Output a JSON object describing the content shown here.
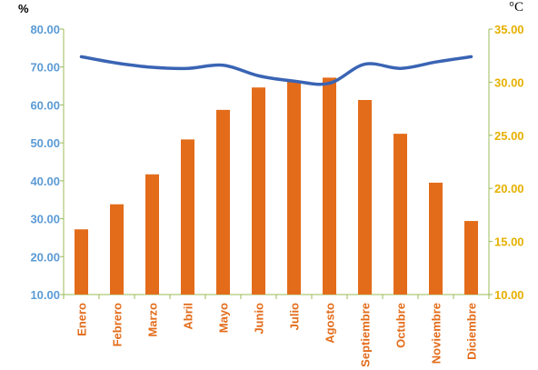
{
  "chart_data": {
    "type": "bar",
    "title": "",
    "categories": [
      "Enero",
      "Febrero",
      "Marzo",
      "Abril",
      "Mayo",
      "Junio",
      "Julio",
      "Agosto",
      "Septiembre",
      "Octubre",
      "Noviembre",
      "Diciembre"
    ],
    "series": [
      {
        "type": "bar",
        "axis": "left",
        "color": "#E36C1A",
        "values": [
          27.2,
          33.8,
          41.7,
          50.9,
          58.7,
          64.6,
          66.2,
          67.2,
          61.3,
          52.4,
          39.5,
          29.4
        ]
      },
      {
        "type": "line",
        "axis": "right",
        "color": "#3A64B4",
        "values": [
          32.4,
          31.8,
          31.4,
          31.3,
          31.6,
          30.6,
          30.1,
          29.9,
          31.7,
          31.3,
          31.9,
          32.4
        ]
      }
    ],
    "y_left": {
      "unit": "%",
      "ylim": [
        10,
        80
      ],
      "ticks": [
        "10.00",
        "20.00",
        "30.00",
        "40.00",
        "50.00",
        "60.00",
        "70.00",
        "80.00"
      ],
      "color": "#5B9BD5"
    },
    "y_right": {
      "unit": "°C",
      "ylim": [
        10,
        35
      ],
      "ticks": [
        "10.00",
        "15.00",
        "20.00",
        "25.00",
        "30.00",
        "35.00"
      ],
      "color": "#E6B000"
    },
    "category_label_color": "#E36C1A",
    "axis_line_color": "#9BBB59",
    "grid": false,
    "legend": "none"
  }
}
